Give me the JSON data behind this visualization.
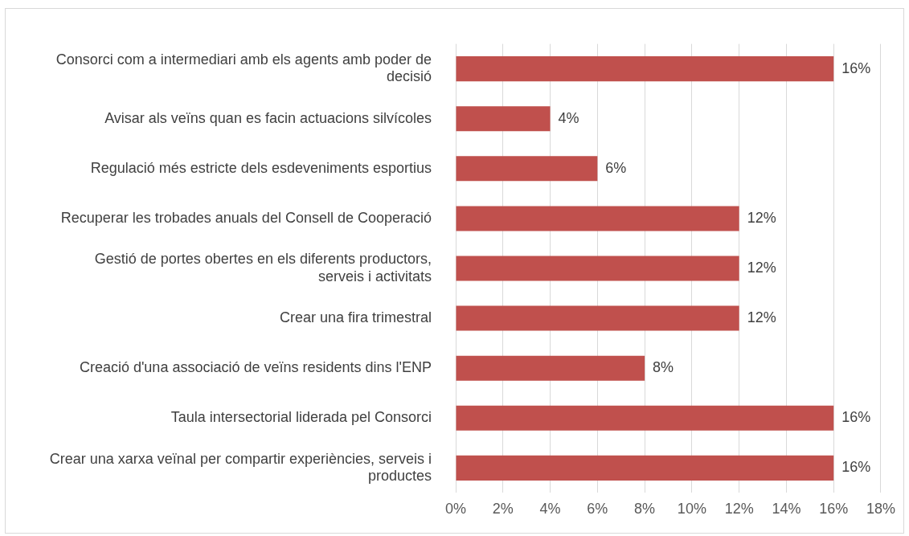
{
  "chart_data": {
    "type": "bar",
    "orientation": "horizontal",
    "categories": [
      "Consorci com a intermediari amb els agents amb poder de decisió",
      "Avisar als veïns quan es facin actuacions silvícoles",
      "Regulació més estricte dels esdeveniments esportius",
      "Recuperar les trobades anuals del Consell de Cooperació",
      "Gestió de portes obertes en els diferents productors, serveis i activitats",
      "Crear una fira trimestral",
      "Creació d'una associació de veïns residents dins l'ENP",
      "Taula intersectorial liderada pel Consorci",
      "Crear una xarxa veïnal per compartir experiències, serveis i productes"
    ],
    "values": [
      16,
      4,
      6,
      12,
      12,
      12,
      8,
      16,
      16
    ],
    "value_labels": [
      "16%",
      "4%",
      "6%",
      "12%",
      "12%",
      "12%",
      "8%",
      "16%",
      "16%"
    ],
    "color": "#c0504d",
    "xlim": [
      0,
      18
    ],
    "xticks": [
      {
        "value": 0,
        "label": "0%"
      },
      {
        "value": 2,
        "label": "2%"
      },
      {
        "value": 4,
        "label": "4%"
      },
      {
        "value": 6,
        "label": "6%"
      },
      {
        "value": 8,
        "label": "8%"
      },
      {
        "value": 10,
        "label": "10%"
      },
      {
        "value": 12,
        "label": "12%"
      },
      {
        "value": 14,
        "label": "14%"
      },
      {
        "value": 16,
        "label": "16%"
      },
      {
        "value": 18,
        "label": "18%"
      }
    ],
    "grid": "x"
  }
}
